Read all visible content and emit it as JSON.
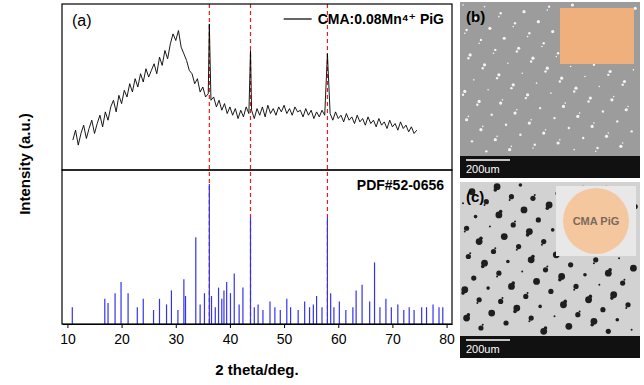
{
  "figure": {
    "y_label": "Intensity (a.u.)"
  },
  "chart_data": [
    {
      "type": "line",
      "title": "(a)",
      "series": [
        {
          "name": "CMA:0.08Mn⁴⁺ PiG",
          "color": "#000000",
          "x": [
            11,
            11.5,
            12,
            12.5,
            13,
            13.5,
            14,
            14.5,
            15,
            15.5,
            16,
            16.5,
            17,
            17.5,
            18,
            18.5,
            19,
            19.5,
            20,
            20.5,
            21,
            21.5,
            22,
            22.5,
            23,
            23.5,
            24,
            24.5,
            25,
            25.5,
            26,
            26.5,
            27,
            27.5,
            28,
            28.5,
            29,
            29.5,
            30,
            30.5,
            31,
            31.5,
            32,
            32.5,
            33,
            33.5,
            34,
            34.5,
            35,
            35.5,
            36,
            36.2,
            36.5,
            37,
            37.5,
            38,
            38.5,
            39,
            39.5,
            40,
            40.5,
            41,
            41.5,
            42,
            42.5,
            43,
            43.5,
            43.8,
            44,
            44.5,
            45,
            45.5,
            46,
            46.5,
            47,
            47.5,
            48,
            48.5,
            49,
            49.5,
            50,
            50.5,
            51,
            51.5,
            52,
            52.5,
            53,
            53.5,
            54,
            54.5,
            55,
            55.5,
            56,
            56.5,
            57,
            57.5,
            58,
            58.5,
            59,
            59.5,
            60,
            60.5,
            61,
            61.5,
            62,
            62.5,
            63,
            63.5,
            64,
            64.5,
            65,
            65.5,
            66,
            66.5,
            67,
            67.5,
            68,
            68.5,
            69,
            69.5,
            70,
            70.5,
            71,
            71.5,
            72,
            72.5,
            73,
            73.5,
            74,
            74.5
          ],
          "values": [
            18,
            24,
            15,
            22,
            27,
            19,
            25,
            30,
            22,
            28,
            33,
            26,
            35,
            30,
            38,
            42,
            35,
            45,
            40,
            48,
            44,
            52,
            47,
            55,
            50,
            58,
            53,
            61,
            56,
            60,
            64,
            58,
            68,
            63,
            72,
            67,
            76,
            82,
            78,
            84,
            74,
            70,
            66,
            60,
            58,
            52,
            55,
            47,
            50,
            44,
            46,
            88,
            42,
            44,
            38,
            42,
            36,
            40,
            34,
            38,
            33,
            37,
            31,
            36,
            32,
            38,
            34,
            72,
            36,
            31,
            37,
            33,
            38,
            32,
            39,
            34,
            37,
            33,
            38,
            35,
            39,
            34,
            37,
            33,
            38,
            35,
            36,
            32,
            37,
            33,
            36,
            31,
            35,
            32,
            36,
            33,
            70,
            34,
            30,
            35,
            31,
            33,
            29,
            34,
            30,
            32,
            28,
            33,
            29,
            31,
            27,
            32,
            28,
            30,
            26,
            31,
            27,
            29,
            25,
            30,
            26,
            28,
            24,
            29,
            25,
            27,
            23,
            26,
            22,
            24
          ]
        }
      ],
      "xlim": [
        9,
        81
      ],
      "ylim": [
        0,
        100
      ],
      "tick_labels": false,
      "legend": "upper right",
      "reference_lines": {
        "x": [
          36.2,
          43.8,
          58.0
        ],
        "color": "#e02020",
        "line_style": "dashed"
      }
    },
    {
      "type": "stem",
      "series": [
        {
          "name": "PDF#52-0656",
          "color": "#3333ee",
          "x": [
            10.9,
            16.9,
            17.5,
            18.8,
            19.9,
            21.2,
            22.9,
            24.0,
            25.9,
            27.0,
            28.3,
            29.2,
            30.4,
            31.5,
            31.8,
            33.7,
            34.5,
            35.3,
            36.2,
            36.6,
            37.3,
            37.9,
            38.5,
            38.9,
            39.4,
            40.1,
            40.8,
            41.7,
            42.4,
            43.8,
            44.5,
            45.2,
            46.1,
            47.4,
            48.3,
            49.3,
            50.5,
            51.2,
            52.6,
            53.8,
            54.7,
            55.4,
            56.0,
            57.0,
            58.0,
            58.6,
            59.2,
            60.2,
            61.4,
            62.7,
            63.3,
            64.4,
            65.8,
            66.7,
            67.7,
            68.8,
            69.8,
            71.0,
            72.1,
            73.1,
            74.0,
            75.4,
            76.3,
            77.5,
            78.6,
            79.3
          ],
          "values": [
            12,
            18,
            15,
            22,
            30,
            22,
            12,
            18,
            10,
            18,
            14,
            24,
            10,
            32,
            20,
            62,
            14,
            22,
            100,
            20,
            12,
            26,
            18,
            24,
            30,
            22,
            36,
            14,
            26,
            76,
            12,
            14,
            10,
            16,
            12,
            10,
            18,
            12,
            10,
            16,
            12,
            14,
            20,
            12,
            76,
            22,
            12,
            16,
            10,
            12,
            24,
            28,
            16,
            44,
            12,
            18,
            12,
            14,
            10,
            12,
            10,
            12,
            12,
            14,
            12,
            12
          ]
        }
      ],
      "xlim": [
        9,
        81
      ],
      "xticks": [
        10,
        20,
        30,
        40,
        50,
        60,
        70,
        80
      ],
      "ylim": [
        0,
        110
      ],
      "x_label": "2 theta/deg.",
      "tick_labels": "x",
      "legend": "upper right"
    }
  ],
  "images": [
    {
      "label": "(b)",
      "scale_bar": "200um"
    },
    {
      "label": "(c)",
      "scale_bar": "200um",
      "inset_text": "CMA PiG"
    }
  ]
}
